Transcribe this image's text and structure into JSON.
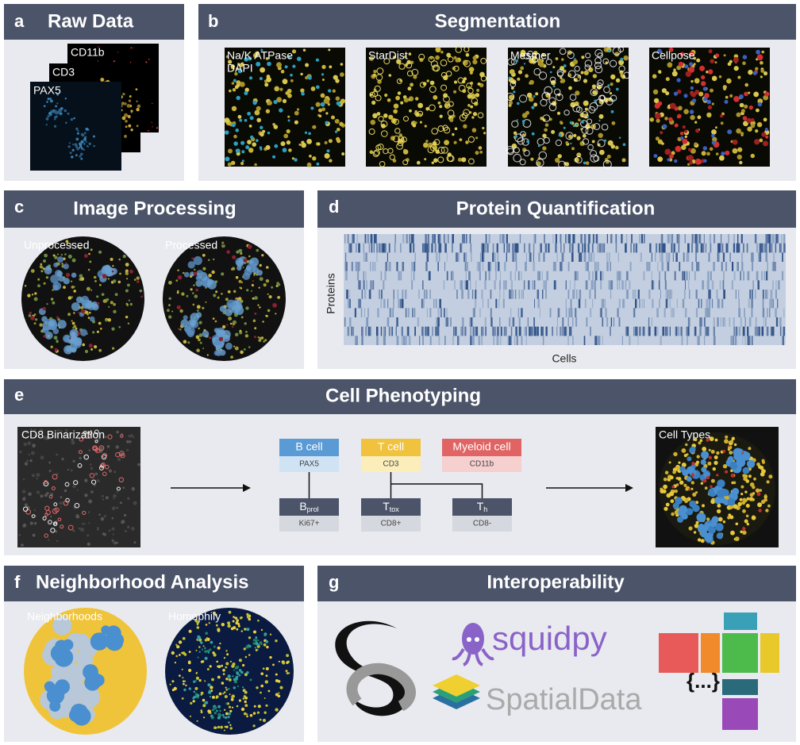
{
  "a": {
    "letter": "a",
    "title": "Raw Data",
    "layers": [
      "CD11b",
      "CD3",
      "PAX5"
    ]
  },
  "b": {
    "letter": "b",
    "title": "Segmentation",
    "images": [
      "Na/K ATPase",
      "StarDist",
      "Mesmer",
      "Cellpose"
    ],
    "dapi": "DAPI"
  },
  "c": {
    "letter": "c",
    "title": "Image Processing",
    "images": [
      "Unprocessed",
      "Processed"
    ]
  },
  "d": {
    "letter": "d",
    "title": "Protein Quantification",
    "y_label": "Proteins",
    "x_label": "Cells"
  },
  "e": {
    "letter": "e",
    "title": "Cell Phenotyping",
    "input": "CD8 Binarization",
    "output": "Cell Types",
    "lineages": [
      {
        "name": "B cell",
        "marker": "PAX5"
      },
      {
        "name": "T cell",
        "marker": "CD3"
      },
      {
        "name": "Myeloid cell",
        "marker": "CD11b"
      }
    ],
    "subtypes": [
      {
        "name": "B",
        "sub": "prol",
        "marker": "Ki67+"
      },
      {
        "name": "T",
        "sub": "tox",
        "marker": "CD8+"
      },
      {
        "name": "T",
        "sub": "h",
        "marker": "CD8-"
      }
    ]
  },
  "f": {
    "letter": "f",
    "title": "Neighborhood Analysis",
    "images": [
      "Neighborhoods",
      "Homophily"
    ]
  },
  "g": {
    "letter": "g",
    "title": "Interoperability",
    "tools": [
      "squidpy",
      "SpatialData"
    ]
  }
}
